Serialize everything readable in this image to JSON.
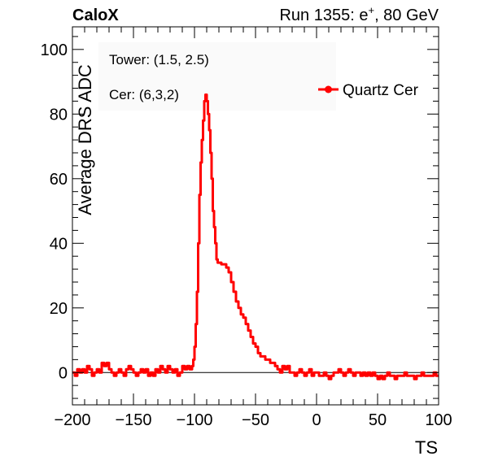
{
  "header": {
    "experiment": "CaloX",
    "run_prefix": "Run 1355: e",
    "run_superscript": "+",
    "run_suffix": ", 80 GeV"
  },
  "annotations": {
    "tower": "Tower: (1.5, 2.5)",
    "cer": "Cer: (6,3,2)"
  },
  "chart_data": {
    "type": "line",
    "xlabel": "TS",
    "ylabel": "Average DRS ADC",
    "xlim": [
      -200,
      100
    ],
    "ylim": [
      -10,
      107
    ],
    "x_ticks": [
      -200,
      -150,
      -100,
      -50,
      0,
      50,
      100
    ],
    "y_ticks": [
      0,
      20,
      40,
      60,
      80,
      100
    ],
    "x_tick_labels": [
      "−200",
      "−150",
      "−100",
      "−50",
      "0",
      "50",
      "100"
    ],
    "y_tick_labels": [
      "0",
      "20",
      "40",
      "60",
      "80",
      "100"
    ],
    "reference_line_y": 0,
    "legend_position": "top-right",
    "grid": false,
    "series": [
      {
        "name": "Quartz Cer",
        "color": "#ff0000",
        "points": [
          [
            -200,
            0
          ],
          [
            -198,
            -1
          ],
          [
            -196,
            1
          ],
          [
            -194,
            0
          ],
          [
            -192,
            1
          ],
          [
            -190,
            0
          ],
          [
            -188,
            2
          ],
          [
            -186,
            1
          ],
          [
            -184,
            -1
          ],
          [
            -182,
            0
          ],
          [
            -180,
            1
          ],
          [
            -178,
            0
          ],
          [
            -176,
            3
          ],
          [
            -174,
            2
          ],
          [
            -172,
            3
          ],
          [
            -170,
            1
          ],
          [
            -168,
            0
          ],
          [
            -166,
            -1
          ],
          [
            -164,
            0
          ],
          [
            -162,
            1
          ],
          [
            -160,
            0
          ],
          [
            -158,
            -1
          ],
          [
            -156,
            1
          ],
          [
            -154,
            2
          ],
          [
            -152,
            1
          ],
          [
            -150,
            0
          ],
          [
            -148,
            -1
          ],
          [
            -146,
            0
          ],
          [
            -144,
            1
          ],
          [
            -142,
            0
          ],
          [
            -140,
            1
          ],
          [
            -138,
            -1
          ],
          [
            -136,
            0
          ],
          [
            -134,
            -1
          ],
          [
            -132,
            1
          ],
          [
            -130,
            0
          ],
          [
            -128,
            2
          ],
          [
            -126,
            1
          ],
          [
            -124,
            0
          ],
          [
            -122,
            2
          ],
          [
            -120,
            1
          ],
          [
            -118,
            0
          ],
          [
            -116,
            1
          ],
          [
            -114,
            -1
          ],
          [
            -112,
            0
          ],
          [
            -110,
            2
          ],
          [
            -108,
            1
          ],
          [
            -106,
            2
          ],
          [
            -104,
            1
          ],
          [
            -102,
            2
          ],
          [
            -101,
            4
          ],
          [
            -100,
            8
          ],
          [
            -99,
            15
          ],
          [
            -98,
            25
          ],
          [
            -97,
            40
          ],
          [
            -96,
            55
          ],
          [
            -95,
            65
          ],
          [
            -94,
            72
          ],
          [
            -93,
            78
          ],
          [
            -92,
            84
          ],
          [
            -91,
            86
          ],
          [
            -90,
            84
          ],
          [
            -89,
            80
          ],
          [
            -88,
            75
          ],
          [
            -87,
            68
          ],
          [
            -86,
            60
          ],
          [
            -85,
            50
          ],
          [
            -84,
            45
          ],
          [
            -83,
            40
          ],
          [
            -82,
            35
          ],
          [
            -81,
            34
          ],
          [
            -80,
            34
          ],
          [
            -78,
            33.5
          ],
          [
            -76,
            33.5
          ],
          [
            -74,
            32.5
          ],
          [
            -72,
            31
          ],
          [
            -70,
            28
          ],
          [
            -68,
            25
          ],
          [
            -66,
            22
          ],
          [
            -64,
            20
          ],
          [
            -62,
            18
          ],
          [
            -60,
            17
          ],
          [
            -58,
            15
          ],
          [
            -56,
            13
          ],
          [
            -54,
            11
          ],
          [
            -52,
            9
          ],
          [
            -50,
            8
          ],
          [
            -48,
            6
          ],
          [
            -46,
            5
          ],
          [
            -44,
            5
          ],
          [
            -42,
            4
          ],
          [
            -40,
            4
          ],
          [
            -38,
            3
          ],
          [
            -36,
            3
          ],
          [
            -34,
            2
          ],
          [
            -32,
            1
          ],
          [
            -30,
            0
          ],
          [
            -28,
            2
          ],
          [
            -26,
            1
          ],
          [
            -24,
            2
          ],
          [
            -22,
            0
          ],
          [
            -20,
            0
          ],
          [
            -18,
            -1
          ],
          [
            -16,
            0
          ],
          [
            -14,
            1
          ],
          [
            -12,
            0
          ],
          [
            -10,
            -1
          ],
          [
            -8,
            0
          ],
          [
            -6,
            1
          ],
          [
            -4,
            -1
          ],
          [
            -2,
            0
          ],
          [
            0,
            0
          ],
          [
            2,
            -1
          ],
          [
            4,
            -1
          ],
          [
            6,
            0
          ],
          [
            8,
            -1
          ],
          [
            10,
            -2
          ],
          [
            12,
            -1
          ],
          [
            14,
            0
          ],
          [
            16,
            0
          ],
          [
            18,
            1
          ],
          [
            20,
            0
          ],
          [
            22,
            -1
          ],
          [
            24,
            0
          ],
          [
            26,
            1
          ],
          [
            28,
            0
          ],
          [
            30,
            -1
          ],
          [
            32,
            0
          ],
          [
            34,
            0
          ],
          [
            36,
            -1
          ],
          [
            38,
            0
          ],
          [
            40,
            -1
          ],
          [
            42,
            0
          ],
          [
            44,
            -1
          ],
          [
            46,
            0
          ],
          [
            48,
            -1
          ],
          [
            50,
            -2
          ],
          [
            52,
            -1
          ],
          [
            54,
            -2
          ],
          [
            56,
            -1
          ],
          [
            58,
            0
          ],
          [
            60,
            -1
          ],
          [
            62,
            -1
          ],
          [
            64,
            -2
          ],
          [
            66,
            -1
          ],
          [
            68,
            -1
          ],
          [
            70,
            -1
          ],
          [
            72,
            0
          ],
          [
            74,
            -1
          ],
          [
            76,
            -1
          ],
          [
            78,
            -1
          ],
          [
            80,
            -2
          ],
          [
            82,
            -1
          ],
          [
            84,
            -1
          ],
          [
            86,
            0
          ],
          [
            88,
            -1
          ],
          [
            90,
            -1
          ],
          [
            92,
            -1
          ],
          [
            94,
            -1
          ],
          [
            96,
            0
          ],
          [
            98,
            -1
          ],
          [
            100,
            -1
          ]
        ]
      }
    ]
  }
}
